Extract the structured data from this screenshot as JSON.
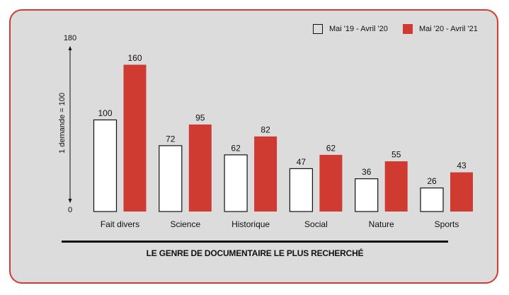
{
  "chart_data": {
    "type": "bar",
    "categories": [
      "Fait divers",
      "Science",
      "Historique",
      "Social",
      "Nature",
      "Sports"
    ],
    "series": [
      {
        "name": "Mai '19 - Avril '20",
        "values": [
          100,
          72,
          62,
          47,
          36,
          26
        ],
        "color": "#ffffff",
        "stroke": "#111111"
      },
      {
        "name": "Mai '20 - Avril '21",
        "values": [
          160,
          95,
          82,
          62,
          55,
          43
        ],
        "color": "#cf3b31",
        "stroke": "#cf3b31"
      }
    ],
    "ylim": [
      0,
      180
    ],
    "ylabel": "1 demande = 100",
    "xlabel": "LE GENRE DE DOCUMENTAIRE LE PLUS RECHERCHÉ",
    "title": "",
    "grid": false,
    "legend": "top-right",
    "y_ticks": [
      "0",
      "180"
    ],
    "background": "#dcdcdc",
    "border_color": "#d13b32"
  }
}
